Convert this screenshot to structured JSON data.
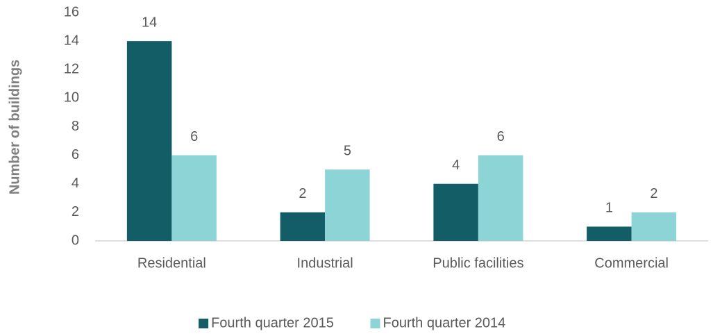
{
  "chart_data": {
    "type": "bar",
    "ylabel": "Number of buildings",
    "categories": [
      "Residential",
      "Industrial",
      "Public facilities",
      "Commercial"
    ],
    "series": [
      {
        "name": "Fourth quarter 2015",
        "color": "#135e66",
        "values": [
          14,
          2,
          4,
          1
        ]
      },
      {
        "name": "Fourth quarter 2014",
        "color": "#8dd4d6",
        "values": [
          6,
          5,
          6,
          2
        ]
      }
    ],
    "ylim": [
      0,
      16
    ],
    "yticks": [
      0,
      2,
      4,
      6,
      8,
      10,
      12,
      14,
      16
    ],
    "grid": false,
    "legend": "bottom"
  }
}
